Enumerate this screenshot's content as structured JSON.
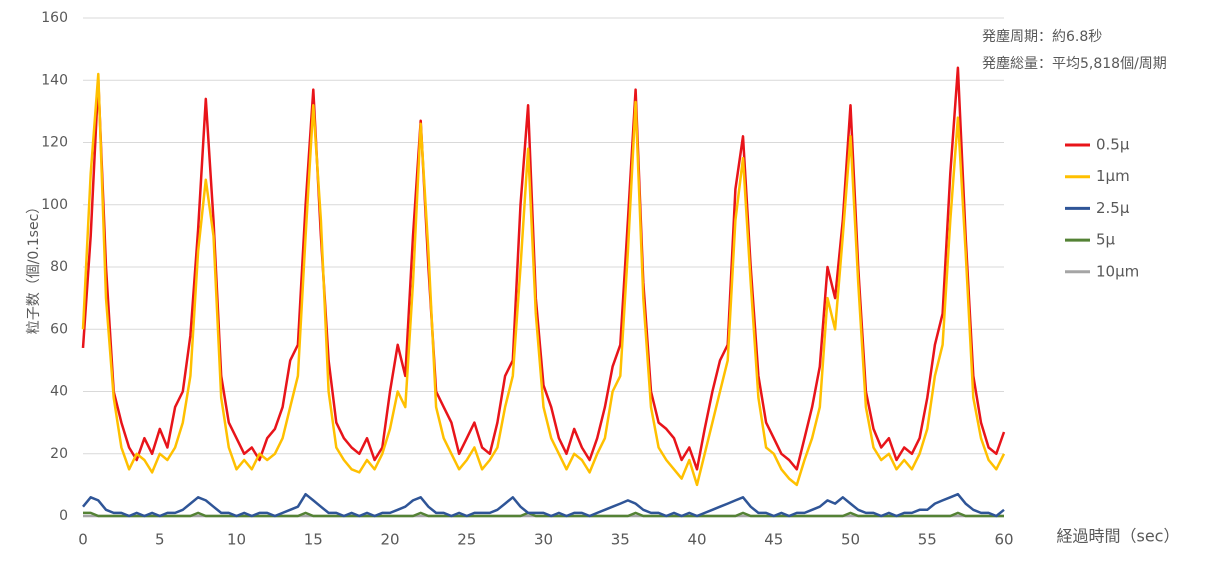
{
  "chart_data": {
    "type": "line",
    "y_label": "粒子数（個/0.1sec）",
    "x_label": "経過時間（sec）",
    "annotations": [
      "発塵周期：約6.8秒",
      "発塵総量：平均5,818個/周期"
    ],
    "xlim": [
      0,
      60
    ],
    "xticks": [
      0,
      5,
      10,
      15,
      20,
      25,
      30,
      35,
      40,
      45,
      50,
      55,
      60
    ],
    "ylim": [
      0,
      160
    ],
    "yticks": [
      0,
      20,
      40,
      60,
      80,
      100,
      120,
      140,
      160
    ],
    "grid": true,
    "legend": "right",
    "x": [
      0,
      0.5,
      1,
      1.5,
      2,
      2.5,
      3,
      3.5,
      4,
      4.5,
      5,
      5.5,
      6,
      6.5,
      7,
      7.5,
      8,
      8.5,
      9,
      9.5,
      10,
      10.5,
      11,
      11.5,
      12,
      12.5,
      13,
      13.5,
      14,
      14.5,
      15,
      15.5,
      16,
      16.5,
      17,
      17.5,
      18,
      18.5,
      19,
      19.5,
      20,
      20.5,
      21,
      21.5,
      22,
      22.5,
      23,
      23.5,
      24,
      24.5,
      25,
      25.5,
      26,
      26.5,
      27,
      27.5,
      28,
      28.5,
      29,
      29.5,
      30,
      30.5,
      31,
      31.5,
      32,
      32.5,
      33,
      33.5,
      34,
      34.5,
      35,
      35.5,
      36,
      36.5,
      37,
      37.5,
      38,
      38.5,
      39,
      39.5,
      40,
      40.5,
      41,
      41.5,
      42,
      42.5,
      43,
      43.5,
      44,
      44.5,
      45,
      45.5,
      46,
      46.5,
      47,
      47.5,
      48,
      48.5,
      49,
      49.5,
      50,
      50.5,
      51,
      51.5,
      52,
      52.5,
      53,
      53.5,
      54,
      54.5,
      55,
      55.5,
      56,
      56.5,
      57,
      57.5,
      58,
      58.5,
      59,
      59.5,
      60
    ],
    "series": [
      {
        "name": "0.5μ",
        "color": "#e8141a",
        "values": [
          54,
          90,
          140,
          80,
          40,
          30,
          22,
          18,
          25,
          20,
          28,
          22,
          35,
          40,
          58,
          92,
          134,
          95,
          45,
          30,
          25,
          20,
          22,
          18,
          25,
          28,
          35,
          50,
          55,
          100,
          137,
          90,
          50,
          30,
          25,
          22,
          20,
          25,
          18,
          22,
          40,
          55,
          45,
          90,
          127,
          80,
          40,
          35,
          30,
          20,
          25,
          30,
          22,
          20,
          30,
          45,
          50,
          100,
          132,
          70,
          42,
          35,
          25,
          20,
          28,
          22,
          18,
          25,
          35,
          48,
          55,
          95,
          137,
          75,
          40,
          30,
          28,
          25,
          18,
          22,
          15,
          28,
          40,
          50,
          55,
          105,
          122,
          80,
          45,
          30,
          25,
          20,
          18,
          15,
          25,
          35,
          48,
          80,
          70,
          95,
          132,
          80,
          40,
          28,
          22,
          25,
          18,
          22,
          20,
          25,
          38,
          55,
          65,
          110,
          144,
          90,
          45,
          30,
          22,
          20,
          27
        ]
      },
      {
        "name": "1μm",
        "color": "#ffc000",
        "values": [
          60,
          110,
          142,
          70,
          38,
          22,
          15,
          20,
          18,
          14,
          20,
          18,
          22,
          30,
          45,
          85,
          108,
          90,
          38,
          22,
          15,
          18,
          15,
          20,
          18,
          20,
          25,
          35,
          45,
          90,
          132,
          95,
          40,
          22,
          18,
          15,
          14,
          18,
          15,
          20,
          28,
          40,
          35,
          75,
          126,
          85,
          35,
          25,
          20,
          15,
          18,
          22,
          15,
          18,
          22,
          35,
          45,
          80,
          118,
          65,
          35,
          25,
          20,
          15,
          20,
          18,
          14,
          20,
          25,
          40,
          45,
          85,
          133,
          70,
          35,
          22,
          18,
          15,
          12,
          18,
          10,
          20,
          30,
          40,
          50,
          95,
          115,
          75,
          38,
          22,
          20,
          15,
          12,
          10,
          18,
          25,
          35,
          70,
          60,
          90,
          122,
          75,
          35,
          22,
          18,
          20,
          15,
          18,
          15,
          20,
          28,
          45,
          55,
          95,
          128,
          85,
          38,
          25,
          18,
          15,
          20
        ]
      },
      {
        "name": "2.5μ",
        "color": "#2f5597",
        "values": [
          3,
          6,
          5,
          2,
          1,
          1,
          0,
          1,
          0,
          1,
          0,
          1,
          1,
          2,
          4,
          6,
          5,
          3,
          1,
          1,
          0,
          1,
          0,
          1,
          1,
          0,
          1,
          2,
          3,
          7,
          5,
          3,
          1,
          1,
          0,
          1,
          0,
          1,
          0,
          1,
          1,
          2,
          3,
          5,
          6,
          3,
          1,
          1,
          0,
          1,
          0,
          1,
          1,
          1,
          2,
          4,
          6,
          3,
          1,
          1,
          1,
          0,
          1,
          0,
          1,
          1,
          0,
          1,
          2,
          3,
          4,
          5,
          4,
          2,
          1,
          1,
          0,
          1,
          0,
          1,
          0,
          1,
          2,
          3,
          4,
          5,
          6,
          3,
          1,
          1,
          0,
          1,
          0,
          1,
          1,
          2,
          3,
          5,
          4,
          6,
          4,
          2,
          1,
          1,
          0,
          1,
          0,
          1,
          1,
          2,
          2,
          4,
          5,
          6,
          7,
          4,
          2,
          1,
          1,
          0,
          2
        ]
      },
      {
        "name": "5μ",
        "color": "#548235",
        "values": [
          1,
          1,
          0,
          0,
          0,
          0,
          0,
          0,
          0,
          0,
          0,
          0,
          0,
          0,
          0,
          1,
          0,
          0,
          0,
          0,
          0,
          0,
          0,
          0,
          0,
          0,
          0,
          0,
          0,
          1,
          0,
          0,
          0,
          0,
          0,
          0,
          0,
          0,
          0,
          0,
          0,
          0,
          0,
          0,
          1,
          0,
          0,
          0,
          0,
          0,
          0,
          0,
          0,
          0,
          0,
          0,
          0,
          0,
          1,
          0,
          0,
          0,
          0,
          0,
          0,
          0,
          0,
          0,
          0,
          0,
          0,
          0,
          1,
          0,
          0,
          0,
          0,
          0,
          0,
          0,
          0,
          0,
          0,
          0,
          0,
          0,
          1,
          0,
          0,
          0,
          0,
          0,
          0,
          0,
          0,
          0,
          0,
          0,
          0,
          0,
          1,
          0,
          0,
          0,
          0,
          0,
          0,
          0,
          0,
          0,
          0,
          0,
          0,
          0,
          1,
          0,
          0,
          0,
          0,
          0,
          0
        ]
      },
      {
        "name": "10μm",
        "color": "#a5a5a5",
        "values": [
          0,
          0,
          0,
          0,
          0,
          0,
          0,
          0,
          0,
          0,
          0,
          0,
          0,
          0,
          0,
          0,
          0,
          0,
          0,
          0,
          0,
          0,
          0,
          0,
          0,
          0,
          0,
          0,
          0,
          0,
          0,
          0,
          0,
          0,
          0,
          0,
          0,
          0,
          0,
          0,
          0,
          0,
          0,
          0,
          0,
          0,
          0,
          0,
          0,
          0,
          0,
          0,
          0,
          0,
          0,
          0,
          0,
          0,
          0,
          0,
          0,
          0,
          0,
          0,
          0,
          0,
          0,
          0,
          0,
          0,
          0,
          0,
          0,
          0,
          0,
          0,
          0,
          0,
          0,
          0,
          0,
          0,
          0,
          0,
          0,
          0,
          0,
          0,
          0,
          0,
          0,
          0,
          0,
          0,
          0,
          0,
          0,
          0,
          0,
          0,
          0,
          0,
          0,
          0,
          0,
          0,
          0,
          0,
          0,
          0,
          0,
          0,
          0,
          0,
          0,
          0,
          0,
          0,
          0,
          0,
          0
        ]
      }
    ]
  }
}
